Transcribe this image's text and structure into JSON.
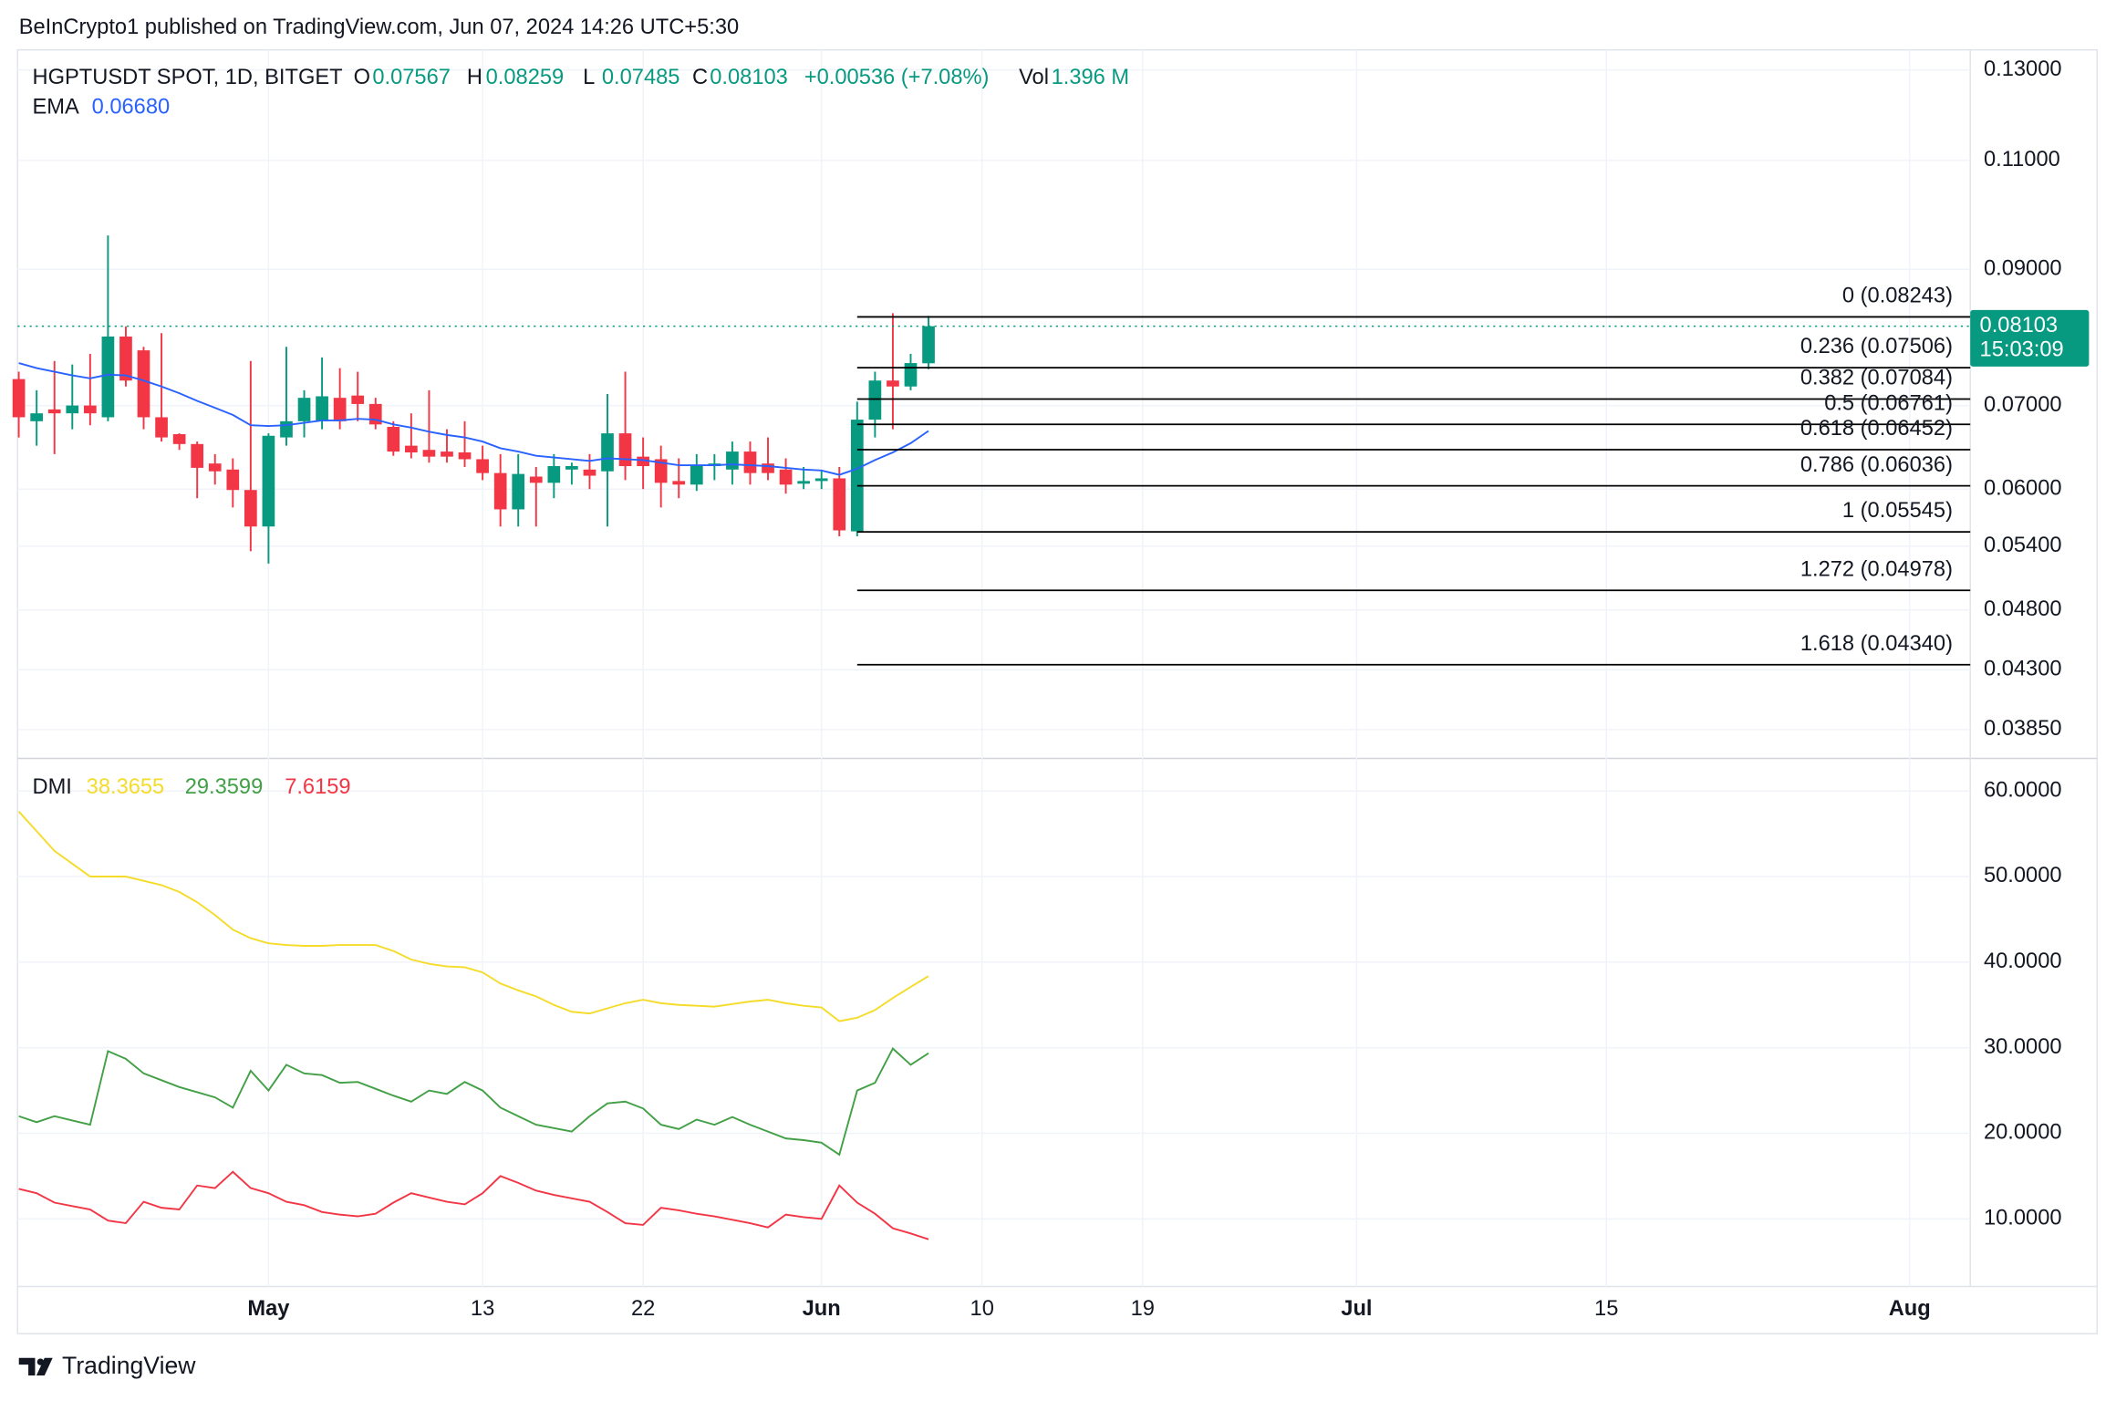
{
  "header": {
    "text": "BeInCrypto1 published on TradingView.com, Jun 07, 2024 14:26 UTC+5:30"
  },
  "footer": {
    "brand": "TradingView"
  },
  "chart_data": [
    {
      "type": "candlestick",
      "title": "HGPTUSDT SPOT, 1D, BITGET",
      "legend": {
        "open_label": "O",
        "high_label": "H",
        "low_label": "L",
        "close_label": "C",
        "change": "+0.00536 (+7.08%)",
        "volume_label": "Vol",
        "volume": "1.396 M",
        "countdown": "15:03:09"
      },
      "x": [
        -14,
        -13,
        -12,
        -11,
        -10,
        -9,
        -8,
        -7,
        -6,
        -5,
        -4,
        -3,
        -2,
        -1,
        0,
        1,
        2,
        3,
        4,
        5,
        6,
        7,
        8,
        9,
        10,
        11,
        12,
        13,
        14,
        15,
        16,
        17,
        18,
        19,
        20,
        21,
        22,
        23,
        24,
        25,
        26,
        27,
        28,
        29,
        30,
        31,
        32,
        33,
        34,
        35,
        36,
        37
      ],
      "open": [
        0.0735,
        0.068,
        0.0695,
        0.069,
        0.07,
        0.0685,
        0.0795,
        0.0775,
        0.0685,
        0.0664,
        0.0652,
        0.0629,
        0.0622,
        0.0599,
        0.056,
        0.066,
        0.068,
        0.068,
        0.071,
        0.0713,
        0.0702,
        0.0673,
        0.065,
        0.0645,
        0.0643,
        0.0642,
        0.0634,
        0.0618,
        0.0578,
        0.0614,
        0.0607,
        0.0622,
        0.0622,
        0.062,
        0.0665,
        0.0637,
        0.0634,
        0.0609,
        0.0605,
        0.0626,
        0.0622,
        0.0643,
        0.0629,
        0.0622,
        0.0606,
        0.0609,
        0.0612,
        0.0555,
        0.0682,
        0.0733,
        0.0725,
        0.07567
      ],
      "high": [
        0.0745,
        0.072,
        0.076,
        0.0755,
        0.077,
        0.0958,
        0.081,
        0.078,
        0.08,
        0.0665,
        0.0655,
        0.064,
        0.0635,
        0.076,
        0.0665,
        0.078,
        0.072,
        0.0765,
        0.075,
        0.0745,
        0.071,
        0.068,
        0.069,
        0.072,
        0.067,
        0.068,
        0.065,
        0.064,
        0.064,
        0.0625,
        0.064,
        0.063,
        0.064,
        0.0715,
        0.0745,
        0.066,
        0.065,
        0.0635,
        0.064,
        0.064,
        0.0655,
        0.0655,
        0.066,
        0.0635,
        0.0625,
        0.062,
        0.0625,
        0.0705,
        0.0745,
        0.083,
        0.077,
        0.08259
      ],
      "low": [
        0.066,
        0.065,
        0.064,
        0.067,
        0.0675,
        0.068,
        0.0725,
        0.067,
        0.0655,
        0.0645,
        0.059,
        0.0605,
        0.058,
        0.0535,
        0.0523,
        0.065,
        0.066,
        0.067,
        0.067,
        0.068,
        0.067,
        0.0638,
        0.0635,
        0.063,
        0.063,
        0.0625,
        0.061,
        0.056,
        0.056,
        0.056,
        0.059,
        0.0605,
        0.06,
        0.056,
        0.061,
        0.06,
        0.058,
        0.059,
        0.0598,
        0.061,
        0.0605,
        0.0605,
        0.061,
        0.0595,
        0.06,
        0.06,
        0.055,
        0.055,
        0.066,
        0.067,
        0.072,
        0.07485
      ],
      "close": [
        0.0685,
        0.069,
        0.069,
        0.07,
        0.069,
        0.0795,
        0.0733,
        0.0685,
        0.066,
        0.0652,
        0.0624,
        0.062,
        0.0599,
        0.056,
        0.0662,
        0.068,
        0.071,
        0.0712,
        0.068,
        0.0702,
        0.0676,
        0.0643,
        0.0642,
        0.0637,
        0.0637,
        0.0634,
        0.0618,
        0.0578,
        0.0617,
        0.0607,
        0.0626,
        0.0626,
        0.0615,
        0.0665,
        0.0626,
        0.0626,
        0.0607,
        0.0605,
        0.0626,
        0.0629,
        0.0643,
        0.0618,
        0.0618,
        0.0605,
        0.0609,
        0.0612,
        0.0556,
        0.0682,
        0.0733,
        0.0725,
        0.0757,
        0.08103
      ],
      "up_color": "#089981",
      "down_color": "#f23645",
      "ema": {
        "name": "EMA",
        "value_label": "0.06680",
        "color": "#2962ff",
        "values": [
          0.0757,
          0.075,
          0.0745,
          0.074,
          0.0736,
          0.0741,
          0.074,
          0.0733,
          0.0725,
          0.0716,
          0.0706,
          0.0697,
          0.0688,
          0.0675,
          0.0674,
          0.0675,
          0.0678,
          0.0681,
          0.0681,
          0.0683,
          0.0682,
          0.0676,
          0.0672,
          0.0667,
          0.0663,
          0.066,
          0.0655,
          0.0647,
          0.0643,
          0.0638,
          0.0636,
          0.0634,
          0.0632,
          0.0635,
          0.0634,
          0.0633,
          0.063,
          0.0627,
          0.0627,
          0.0627,
          0.0628,
          0.0627,
          0.0626,
          0.0624,
          0.0622,
          0.0621,
          0.0616,
          0.0623,
          0.0633,
          0.0642,
          0.0653,
          0.0668
        ]
      },
      "fib": {
        "anchor_x": 33,
        "color": "#000000",
        "levels": [
          {
            "value": 0.08243,
            "label": "0 (0.08243)"
          },
          {
            "value": 0.07506,
            "label": "0.236 (0.07506)"
          },
          {
            "value": 0.07084,
            "label": "0.382 (0.07084)"
          },
          {
            "value": 0.06761,
            "label": "0.5 (0.06761)"
          },
          {
            "value": 0.06452,
            "label": "0.618 (0.06452)"
          },
          {
            "value": 0.06036,
            "label": "0.786 (0.06036)"
          },
          {
            "value": 0.05545,
            "label": "1 (0.05545)"
          },
          {
            "value": 0.04978,
            "label": "1.272 (0.04978)"
          },
          {
            "value": 0.0434,
            "label": "1.618 (0.04340)"
          }
        ]
      },
      "xlim": [
        -14.07,
        95.4
      ],
      "xticks": [
        {
          "value": 0,
          "label": "May"
        },
        {
          "value": 12,
          "label": "13"
        },
        {
          "value": 21,
          "label": "22"
        },
        {
          "value": 31,
          "label": "Jun"
        },
        {
          "value": 40,
          "label": "10"
        },
        {
          "value": 49,
          "label": "19"
        },
        {
          "value": 61,
          "label": "Jul"
        },
        {
          "value": 75,
          "label": "15"
        },
        {
          "value": 92,
          "label": "Aug"
        }
      ],
      "ylim": [
        0.0366,
        0.1349
      ],
      "log_scale": true,
      "grid": true,
      "yticks": [
        {
          "value": 0.13,
          "label": "0.13000"
        },
        {
          "value": 0.11,
          "label": "0.11000"
        },
        {
          "value": 0.09,
          "label": "0.09000"
        },
        {
          "value": 0.07,
          "label": "0.07000"
        },
        {
          "value": 0.06,
          "label": "0.06000"
        },
        {
          "value": 0.054,
          "label": "0.05400"
        },
        {
          "value": 0.048,
          "label": "0.04800"
        },
        {
          "value": 0.043,
          "label": "0.04300"
        },
        {
          "value": 0.0385,
          "label": "0.03850"
        }
      ]
    },
    {
      "type": "line",
      "title": "DMI",
      "x": [
        -14,
        -13,
        -12,
        -11,
        -10,
        -9,
        -8,
        -7,
        -6,
        -5,
        -4,
        -3,
        -2,
        -1,
        0,
        1,
        2,
        3,
        4,
        5,
        6,
        7,
        8,
        9,
        10,
        11,
        12,
        13,
        14,
        15,
        16,
        17,
        18,
        19,
        20,
        21,
        22,
        23,
        24,
        25,
        26,
        27,
        28,
        29,
        30,
        31,
        32,
        33,
        34,
        35,
        36,
        37
      ],
      "series": [
        {
          "color": "#f5dc2a",
          "values": [
            57.6,
            55.3,
            53,
            51.5,
            50,
            50,
            50,
            49.5,
            49,
            48.2,
            47,
            45.5,
            43.8,
            42.8,
            42.2,
            42,
            41.9,
            41.9,
            42,
            42,
            42,
            41.3,
            40.3,
            39.8,
            39.5,
            39.4,
            38.8,
            37.5,
            36.7,
            36,
            35,
            34.2,
            34,
            34.6,
            35.2,
            35.6,
            35.2,
            35,
            34.9,
            34.8,
            35.1,
            35.4,
            35.6,
            35.2,
            34.9,
            34.7,
            33.1,
            33.5,
            34.4,
            35.8,
            37.1,
            38.3655
          ]
        },
        {
          "color": "#43a047",
          "values": [
            22,
            21.3,
            22,
            21.5,
            21,
            29.6,
            28.7,
            27,
            26.2,
            25.4,
            24.8,
            24.2,
            23,
            27.3,
            25,
            28,
            27,
            26.8,
            25.9,
            26,
            25.2,
            24.4,
            23.7,
            25,
            24.6,
            26,
            25,
            23,
            22,
            21,
            20.6,
            20.2,
            22,
            23.5,
            23.7,
            22.9,
            21,
            20.5,
            21.6,
            21,
            21.9,
            21,
            20.2,
            19.4,
            19.2,
            18.9,
            17.5,
            25,
            25.9,
            29.9,
            28,
            29.3599
          ]
        },
        {
          "color": "#f23645",
          "values": [
            13.5,
            13,
            11.9,
            11.5,
            11.1,
            9.8,
            9.5,
            12,
            11.3,
            11.1,
            13.9,
            13.6,
            15.5,
            13.6,
            13,
            12,
            11.6,
            10.8,
            10.5,
            10.3,
            10.6,
            11.9,
            13,
            12.5,
            12,
            11.7,
            13,
            15,
            14.2,
            13.3,
            12.8,
            12.4,
            12,
            10.8,
            9.5,
            9.3,
            11.3,
            11,
            10.6,
            10.3,
            9.9,
            9.5,
            9,
            10.5,
            10.2,
            10,
            13.9,
            11.9,
            10.6,
            8.9,
            8.3,
            7.6159
          ]
        }
      ],
      "xlim": [
        -14.07,
        95.4
      ],
      "ylim": [
        2.1,
        63.8
      ],
      "grid": true,
      "yticks": [
        {
          "value": 60,
          "label": "60.0000"
        },
        {
          "value": 50,
          "label": "50.0000"
        },
        {
          "value": 40,
          "label": "40.0000"
        },
        {
          "value": 30,
          "label": "30.0000"
        },
        {
          "value": 20,
          "label": "20.0000"
        },
        {
          "value": 10,
          "label": "10.0000"
        }
      ]
    }
  ]
}
